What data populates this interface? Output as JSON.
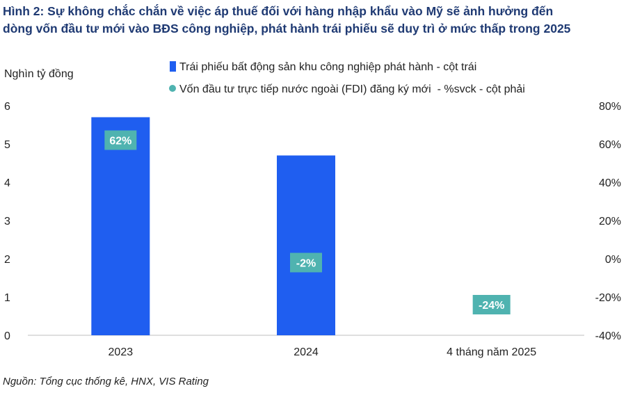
{
  "title_line1": "Hình 2: Sự không chắc chắn về việc áp thuế đối với hàng nhập khẩu vào Mỹ sẽ ảnh hưởng đến",
  "title_line2": "dòng vốn đầu tư mới vào BĐS công nghiệp, phát hành trái phiếu sẽ duy trì ở mức thấp trong 2025",
  "source": "Nguồn: Tổng cục thống kê, HNX, VIS Rating",
  "colors": {
    "bar": "#1f5ef0",
    "dot": "#4fb3b0",
    "title": "#1f3a73"
  },
  "chart_data": {
    "type": "bar",
    "categories": [
      "2023",
      "2024",
      "4 tháng năm 2025"
    ],
    "y_left_label": "Nghìn tỷ đồng",
    "ylim_left": [
      0,
      6
    ],
    "y_left_ticks": [
      "0",
      "1",
      "2",
      "3",
      "4",
      "5",
      "6"
    ],
    "ylim_right": [
      -40,
      80
    ],
    "y_right_ticks": [
      "-40%",
      "-20%",
      "0%",
      "20%",
      "40%",
      "60%",
      "80%"
    ],
    "legend_position": "top",
    "grid": false,
    "series": [
      {
        "name": "Trái phiếu bất động sản khu công nghiệp phát hành - cột trái",
        "type": "bar",
        "axis": "left",
        "values": [
          5.7,
          4.7,
          0
        ]
      },
      {
        "name": "Vốn đầu tư trực tiếp nước ngoài (FDI) đăng ký mới  - %svck - cột phải",
        "type": "scatter",
        "axis": "right",
        "values": [
          62,
          -2,
          -24
        ],
        "labels": [
          "62%",
          "-2%",
          "-24%"
        ]
      }
    ]
  }
}
